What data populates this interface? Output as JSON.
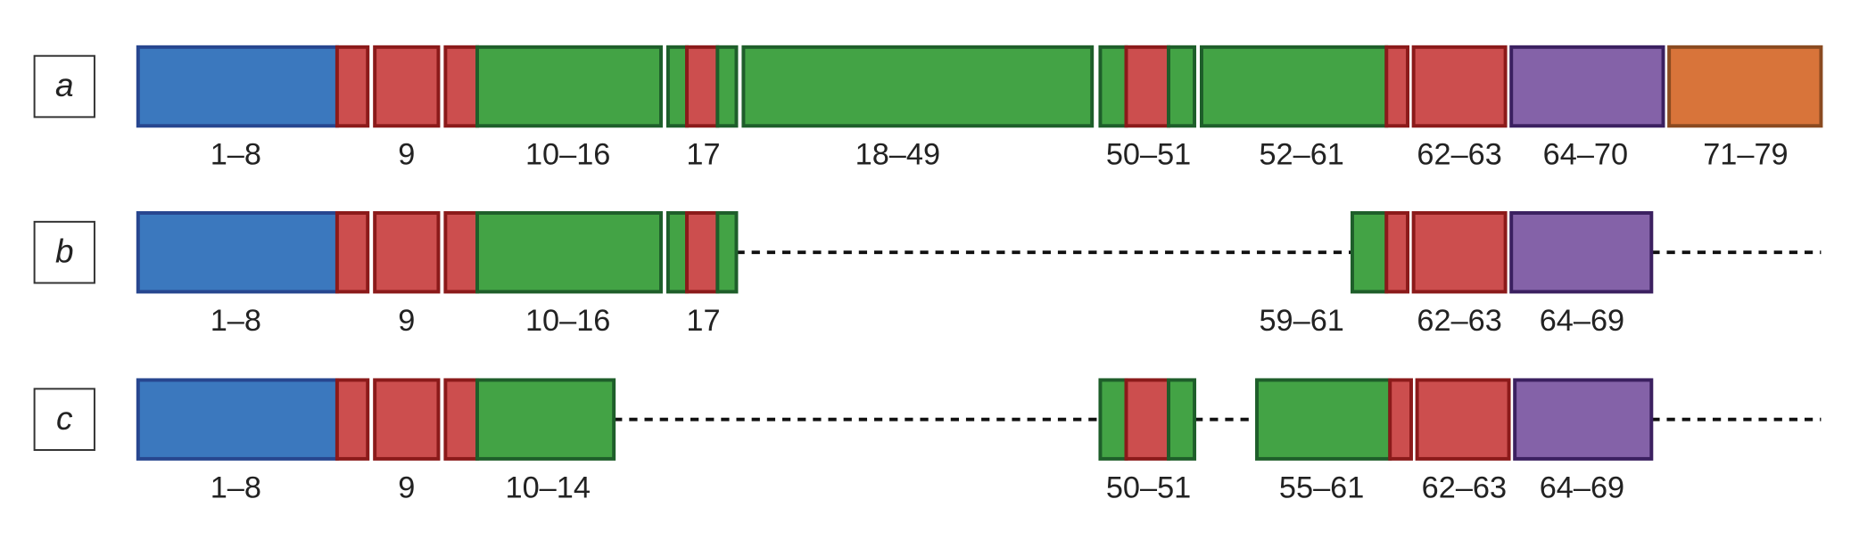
{
  "rows": [
    {
      "label": "a",
      "segments": [
        "1–8",
        "9",
        "10–16",
        "17",
        "18–49",
        "50–51",
        "52–61",
        "62–63",
        "64–70",
        "71–79"
      ]
    },
    {
      "label": "b",
      "segments": [
        "1–8",
        "9",
        "10–16",
        "17",
        "59–61",
        "62–63",
        "64–69"
      ]
    },
    {
      "label": "c",
      "segments": [
        "1–8",
        "9",
        "10–14",
        "50–51",
        "55–61",
        "62–63",
        "64–69"
      ]
    }
  ]
}
